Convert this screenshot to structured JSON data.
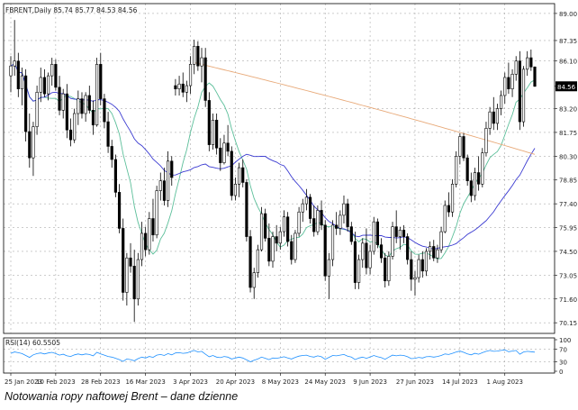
{
  "caption": "Notowania ropy naftowej Brent – dane dzienne",
  "chart_data": [
    {
      "type": "candlestick",
      "title": "FBRENT,Daily",
      "ohlc_label": "85.74 85.77 84.53 84.56",
      "current_price": 84.56,
      "current_price_label": "84.56",
      "ylim": [
        69.5,
        89.6
      ],
      "y_ticks": [
        "89.00",
        "87.35",
        "86.10",
        "84.56",
        "83.20",
        "81.75",
        "80.30",
        "78.85",
        "77.40",
        "75.95",
        "74.50",
        "73.05",
        "71.60",
        "70.15"
      ],
      "y_tick_values": [
        89.0,
        87.35,
        86.1,
        84.56,
        83.2,
        81.75,
        80.3,
        78.85,
        77.4,
        75.95,
        74.5,
        73.05,
        71.6,
        70.15
      ],
      "x_ticks": [
        "25 Jan 2023",
        "10 Feb 2023",
        "28 Feb 2023",
        "16 Mar 2023",
        "3 Apr 2023",
        "20 Apr 2023",
        "8 May 2023",
        "24 May 2023",
        "9 Jun 2023",
        "27 Jun 2023",
        "14 Jul 2023",
        "1 Aug 2023"
      ],
      "x_tick_index": [
        0,
        12,
        24,
        36,
        48,
        60,
        72,
        84,
        96,
        108,
        120,
        132
      ],
      "candles": [
        [
          85.2,
          86.4,
          84.2,
          85.8
        ],
        [
          85.8,
          88.6,
          85.2,
          86.1
        ],
        [
          86.1,
          86.6,
          83.9,
          84.4
        ],
        [
          84.4,
          85.7,
          83.4,
          85.2
        ],
        [
          85.2,
          85.6,
          81.2,
          81.8
        ],
        [
          81.8,
          82.9,
          79.6,
          80.2
        ],
        [
          80.2,
          82.4,
          79.1,
          82.1
        ],
        [
          82.1,
          84.6,
          81.6,
          84.2
        ],
        [
          84.2,
          85.7,
          83.6,
          85.1
        ],
        [
          85.1,
          85.6,
          83.9,
          84.1
        ],
        [
          84.1,
          85.4,
          83.7,
          85.2
        ],
        [
          85.2,
          86.3,
          84.6,
          85.9
        ],
        [
          85.9,
          86.2,
          84.3,
          84.5
        ],
        [
          84.5,
          85.2,
          82.8,
          83.1
        ],
        [
          83.1,
          84.4,
          82.6,
          84.1
        ],
        [
          84.1,
          84.7,
          81.4,
          81.9
        ],
        [
          81.9,
          82.6,
          80.9,
          81.3
        ],
        [
          81.3,
          83.2,
          81.1,
          82.9
        ],
        [
          82.9,
          84.3,
          82.2,
          83.8
        ],
        [
          83.8,
          84.2,
          82.6,
          82.9
        ],
        [
          82.9,
          84.2,
          82.4,
          84.0
        ],
        [
          84.0,
          84.6,
          82.9,
          83.1
        ],
        [
          83.1,
          83.7,
          81.6,
          82.2
        ],
        [
          82.2,
          86.3,
          82.1,
          85.9
        ],
        [
          85.9,
          86.6,
          83.4,
          83.8
        ],
        [
          83.8,
          84.1,
          82.0,
          82.4
        ],
        [
          82.4,
          83.0,
          80.5,
          80.9
        ],
        [
          80.9,
          81.3,
          79.6,
          80.1
        ],
        [
          80.1,
          80.4,
          77.8,
          78.1
        ],
        [
          78.1,
          78.6,
          75.6,
          75.9
        ],
        [
          75.9,
          76.5,
          71.5,
          72.0
        ],
        [
          72.0,
          74.4,
          71.2,
          74.1
        ],
        [
          74.1,
          75.0,
          73.2,
          73.6
        ],
        [
          73.6,
          74.6,
          70.2,
          71.6
        ],
        [
          71.6,
          74.4,
          71.2,
          74.0
        ],
        [
          74.0,
          76.3,
          73.6,
          75.6
        ],
        [
          75.6,
          76.0,
          74.2,
          74.6
        ],
        [
          74.6,
          76.9,
          74.3,
          76.5
        ],
        [
          76.5,
          77.7,
          75.1,
          75.5
        ],
        [
          75.5,
          78.5,
          75.3,
          78.2
        ],
        [
          78.2,
          79.3,
          77.6,
          78.8
        ],
        [
          78.8,
          79.6,
          77.3,
          77.6
        ],
        [
          77.6,
          80.6,
          77.2,
          80.0
        ],
        [
          80.0,
          80.3,
          78.5,
          79.0
        ],
        [
          84.6,
          85.0,
          84.0,
          84.4
        ],
        [
          84.4,
          85.2,
          84.0,
          84.7
        ],
        [
          84.7,
          85.4,
          83.9,
          84.2
        ],
        [
          84.2,
          84.9,
          83.6,
          84.6
        ],
        [
          84.6,
          86.4,
          84.1,
          85.9
        ],
        [
          85.9,
          87.4,
          85.3,
          87.0
        ],
        [
          87.0,
          87.3,
          85.5,
          85.8
        ],
        [
          85.8,
          86.9,
          84.8,
          86.3
        ],
        [
          86.3,
          86.9,
          83.3,
          83.7
        ],
        [
          83.7,
          84.2,
          80.6,
          81.0
        ],
        [
          81.0,
          82.9,
          80.7,
          82.5
        ],
        [
          82.5,
          82.9,
          80.4,
          80.8
        ],
        [
          80.8,
          81.4,
          79.4,
          79.9
        ],
        [
          79.9,
          81.6,
          79.8,
          81.1
        ],
        [
          81.1,
          82.2,
          80.3,
          80.6
        ],
        [
          80.6,
          80.9,
          77.6,
          77.9
        ],
        [
          77.9,
          79.0,
          77.6,
          78.6
        ],
        [
          78.6,
          79.9,
          77.8,
          79.6
        ],
        [
          79.6,
          80.1,
          78.4,
          78.7
        ],
        [
          78.7,
          78.9,
          75.1,
          75.4
        ],
        [
          75.4,
          75.8,
          72.0,
          72.3
        ],
        [
          72.3,
          73.5,
          71.6,
          73.2
        ],
        [
          73.2,
          74.9,
          72.9,
          74.6
        ],
        [
          74.6,
          77.2,
          74.5,
          76.8
        ],
        [
          76.8,
          77.1,
          75.1,
          75.3
        ],
        [
          75.3,
          76.2,
          73.6,
          73.9
        ],
        [
          73.9,
          75.7,
          73.5,
          75.4
        ],
        [
          75.4,
          76.1,
          74.5,
          75.0
        ],
        [
          75.0,
          76.0,
          74.6,
          75.7
        ],
        [
          75.7,
          77.0,
          75.4,
          76.6
        ],
        [
          76.6,
          76.9,
          74.8,
          75.1
        ],
        [
          75.1,
          75.5,
          73.7,
          74.0
        ],
        [
          74.0,
          75.8,
          73.8,
          75.6
        ],
        [
          75.6,
          77.2,
          75.4,
          76.9
        ],
        [
          76.9,
          77.7,
          76.3,
          77.4
        ],
        [
          77.4,
          78.3,
          77.0,
          77.8
        ],
        [
          77.8,
          78.0,
          76.2,
          76.5
        ],
        [
          76.5,
          77.3,
          75.4,
          75.7
        ],
        [
          75.7,
          77.3,
          75.5,
          77.0
        ],
        [
          77.0,
          77.6,
          75.8,
          76.1
        ],
        [
          76.1,
          76.4,
          72.7,
          73.0
        ],
        [
          73.0,
          74.4,
          71.6,
          74.0
        ],
        [
          74.0,
          76.4,
          73.6,
          76.1
        ],
        [
          76.1,
          76.9,
          75.5,
          75.9
        ],
        [
          75.9,
          77.0,
          75.5,
          76.7
        ],
        [
          76.7,
          77.9,
          76.2,
          77.4
        ],
        [
          77.4,
          77.7,
          75.7,
          76.0
        ],
        [
          76.0,
          76.3,
          74.9,
          75.1
        ],
        [
          75.1,
          75.7,
          72.2,
          72.6
        ],
        [
          72.6,
          74.3,
          72.2,
          74.0
        ],
        [
          74.0,
          75.3,
          73.5,
          75.0
        ],
        [
          75.0,
          75.9,
          73.1,
          73.5
        ],
        [
          73.5,
          74.9,
          73.1,
          74.5
        ],
        [
          74.5,
          76.6,
          74.3,
          76.3
        ],
        [
          76.3,
          76.5,
          74.7,
          74.9
        ],
        [
          74.9,
          75.3,
          73.8,
          74.1
        ],
        [
          74.1,
          74.4,
          72.3,
          72.7
        ],
        [
          72.7,
          74.5,
          72.4,
          74.2
        ],
        [
          74.2,
          76.3,
          74.0,
          76.0
        ],
        [
          76.0,
          77.0,
          75.0,
          75.4
        ],
        [
          75.4,
          76.0,
          74.6,
          75.8
        ],
        [
          75.8,
          76.1,
          75.0,
          75.4
        ],
        [
          75.4,
          75.6,
          73.7,
          74.0
        ],
        [
          74.0,
          74.5,
          72.1,
          72.8
        ],
        [
          72.8,
          73.3,
          71.8,
          72.9
        ],
        [
          72.9,
          74.3,
          72.6,
          74.0
        ],
        [
          74.0,
          74.5,
          72.9,
          73.3
        ],
        [
          73.3,
          74.7,
          73.0,
          74.5
        ],
        [
          74.5,
          75.1,
          74.0,
          74.8
        ],
        [
          74.8,
          75.2,
          73.9,
          74.1
        ],
        [
          74.1,
          74.9,
          73.8,
          74.6
        ],
        [
          74.6,
          76.0,
          74.4,
          75.7
        ],
        [
          75.7,
          77.6,
          75.6,
          77.3
        ],
        [
          77.3,
          78.1,
          76.6,
          76.9
        ],
        [
          76.9,
          78.9,
          76.6,
          78.6
        ],
        [
          78.6,
          80.6,
          78.4,
          80.3
        ],
        [
          80.3,
          81.7,
          79.8,
          81.5
        ],
        [
          81.5,
          81.7,
          80.0,
          80.2
        ],
        [
          80.2,
          80.4,
          78.5,
          78.8
        ],
        [
          78.8,
          79.3,
          77.5,
          77.9
        ],
        [
          77.9,
          79.6,
          77.6,
          79.3
        ],
        [
          79.3,
          80.3,
          78.2,
          78.6
        ],
        [
          78.6,
          80.8,
          78.4,
          80.5
        ],
        [
          80.5,
          82.4,
          80.3,
          82.0
        ],
        [
          82.0,
          83.3,
          81.6,
          83.0
        ],
        [
          83.0,
          83.9,
          81.9,
          82.3
        ],
        [
          82.3,
          83.5,
          81.9,
          83.2
        ],
        [
          83.2,
          84.3,
          82.8,
          84.0
        ],
        [
          84.0,
          85.4,
          83.5,
          85.1
        ],
        [
          85.1,
          86.0,
          84.1,
          84.4
        ],
        [
          84.4,
          85.6,
          83.9,
          85.3
        ],
        [
          85.3,
          86.4,
          84.9,
          86.1
        ],
        [
          86.1,
          86.7,
          81.9,
          82.4
        ],
        [
          82.4,
          85.8,
          82.1,
          85.6
        ],
        [
          85.6,
          86.7,
          85.2,
          86.3
        ],
        [
          86.3,
          86.8,
          85.5,
          85.74
        ],
        [
          85.74,
          85.77,
          84.53,
          84.56
        ]
      ],
      "overlays": [
        {
          "name": "MA fast",
          "color": "#5cbf9a",
          "period": 10
        },
        {
          "name": "MA mid",
          "color": "#3b3bd1",
          "period": 30
        },
        {
          "name": "MA slow",
          "color": "#e8a978",
          "period": 200
        }
      ],
      "grid": true,
      "background": "#ffffff"
    },
    {
      "type": "line",
      "title": "RSI(14) 60.5505",
      "ylim": [
        0,
        100
      ],
      "y_ticks": [
        "100",
        "70",
        "30",
        "0"
      ],
      "y_tick_values": [
        100,
        70,
        30,
        0
      ],
      "levels": [
        70,
        30
      ],
      "series": [
        {
          "color": "#1e90ff",
          "values": [
            57,
            61,
            59,
            56,
            50,
            44,
            52,
            56,
            58,
            55,
            58,
            60,
            56,
            51,
            54,
            49,
            47,
            52,
            55,
            52,
            55,
            53,
            49,
            60,
            55,
            51,
            47,
            45,
            41,
            37,
            31,
            39,
            37,
            33,
            40,
            45,
            42,
            47,
            44,
            51,
            53,
            50,
            56,
            52,
            58,
            59,
            57,
            58,
            62,
            66,
            61,
            63,
            54,
            46,
            50,
            45,
            43,
            47,
            45,
            39,
            42,
            45,
            42,
            36,
            30,
            35,
            39,
            45,
            41,
            37,
            42,
            41,
            43,
            46,
            42,
            39,
            44,
            48,
            50,
            51,
            47,
            45,
            49,
            46,
            38,
            44,
            50,
            49,
            51,
            53,
            48,
            45,
            37,
            42,
            45,
            41,
            45,
            50,
            46,
            43,
            38,
            45,
            51,
            49,
            51,
            50,
            46,
            40,
            41,
            44,
            42,
            46,
            47,
            45,
            47,
            50,
            55,
            53,
            57,
            61,
            64,
            60,
            55,
            52,
            57,
            54,
            59,
            63,
            66,
            63,
            64,
            66,
            68,
            62,
            64,
            66,
            54,
            61,
            63,
            62,
            60.55
          ]
        }
      ]
    }
  ]
}
